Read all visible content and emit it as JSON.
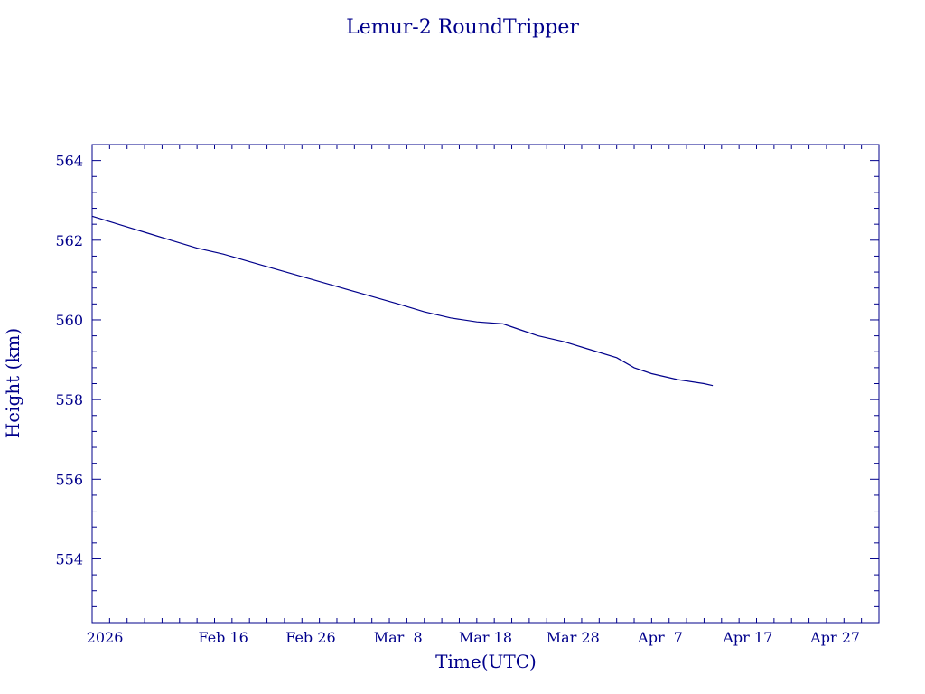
{
  "chart_data": {
    "type": "line",
    "title": "Lemur-2 RoundTripper",
    "xlabel": "Time(UTC)",
    "ylabel": "Height (km)",
    "color": "#00008b",
    "grid": false,
    "ylim": [
      552.4,
      564.4
    ],
    "xlim": [
      "2026-02-01",
      "2026-05-02"
    ],
    "y_ticks": [
      554,
      556,
      558,
      560,
      562,
      564
    ],
    "y_minor_step": 0.4,
    "x_ticks": [
      {
        "date": "2026-02-06",
        "label": "2026"
      },
      {
        "date": "2026-02-16",
        "label": "Feb 16"
      },
      {
        "date": "2026-02-26",
        "label": "Feb 26"
      },
      {
        "date": "2026-03-08",
        "label": "Mar  8"
      },
      {
        "date": "2026-03-18",
        "label": "Mar 18"
      },
      {
        "date": "2026-03-28",
        "label": "Mar 28"
      },
      {
        "date": "2026-04-07",
        "label": "Apr  7"
      },
      {
        "date": "2026-04-17",
        "label": "Apr 17"
      },
      {
        "date": "2026-04-27",
        "label": "Apr 27"
      }
    ],
    "series": [
      {
        "x": [
          "2026-02-01",
          "2026-02-04",
          "2026-02-07",
          "2026-02-10",
          "2026-02-13",
          "2026-02-16",
          "2026-02-20",
          "2026-02-24",
          "2026-02-28",
          "2026-03-04",
          "2026-03-08",
          "2026-03-11",
          "2026-03-14",
          "2026-03-17",
          "2026-03-20",
          "2026-03-22",
          "2026-03-24",
          "2026-03-27",
          "2026-03-30",
          "2026-04-02",
          "2026-04-04",
          "2026-04-06",
          "2026-04-09",
          "2026-04-12",
          "2026-04-13"
        ],
        "y": [
          562.6,
          562.4,
          562.2,
          562.0,
          561.8,
          561.65,
          561.4,
          561.15,
          560.9,
          560.65,
          560.4,
          560.2,
          560.05,
          559.95,
          559.9,
          559.75,
          559.6,
          559.45,
          559.25,
          559.05,
          558.8,
          558.65,
          558.5,
          558.4,
          558.35
        ]
      }
    ]
  }
}
